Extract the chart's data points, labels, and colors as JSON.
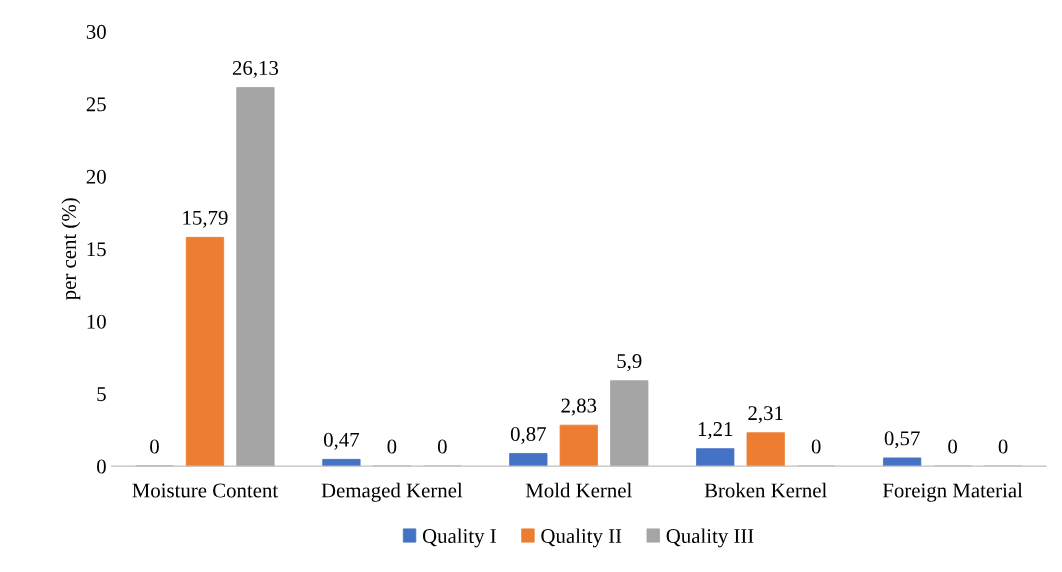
{
  "chart_data": {
    "type": "bar",
    "ylabel": "per cent (%)",
    "categories": [
      "Moisture Content",
      "Demaged Kernel",
      "Mold Kernel",
      "Broken Kernel",
      "Foreign Material"
    ],
    "series": [
      {
        "name": "Quality I",
        "color": "#4472c4",
        "values": [
          0,
          0.47,
          0.87,
          1.21,
          0.57
        ],
        "value_labels": [
          "0",
          "0,47",
          "0,87",
          "1,21",
          "0,57"
        ]
      },
      {
        "name": "Quality II",
        "color": "#ed7d31",
        "values": [
          15.79,
          0,
          2.83,
          2.31,
          0
        ],
        "value_labels": [
          "15,79",
          "0",
          "2,83",
          "2,31",
          "0"
        ]
      },
      {
        "name": "Quality III",
        "color": "#a5a5a5",
        "values": [
          26.13,
          0,
          5.9,
          0,
          0
        ],
        "value_labels": [
          "26,13",
          "0",
          "5,9",
          "0",
          "0"
        ]
      }
    ],
    "ylim": [
      0,
      30
    ],
    "yticks": [
      0,
      5,
      10,
      15,
      20,
      25,
      30
    ],
    "grid": false,
    "legend": "bottom"
  }
}
